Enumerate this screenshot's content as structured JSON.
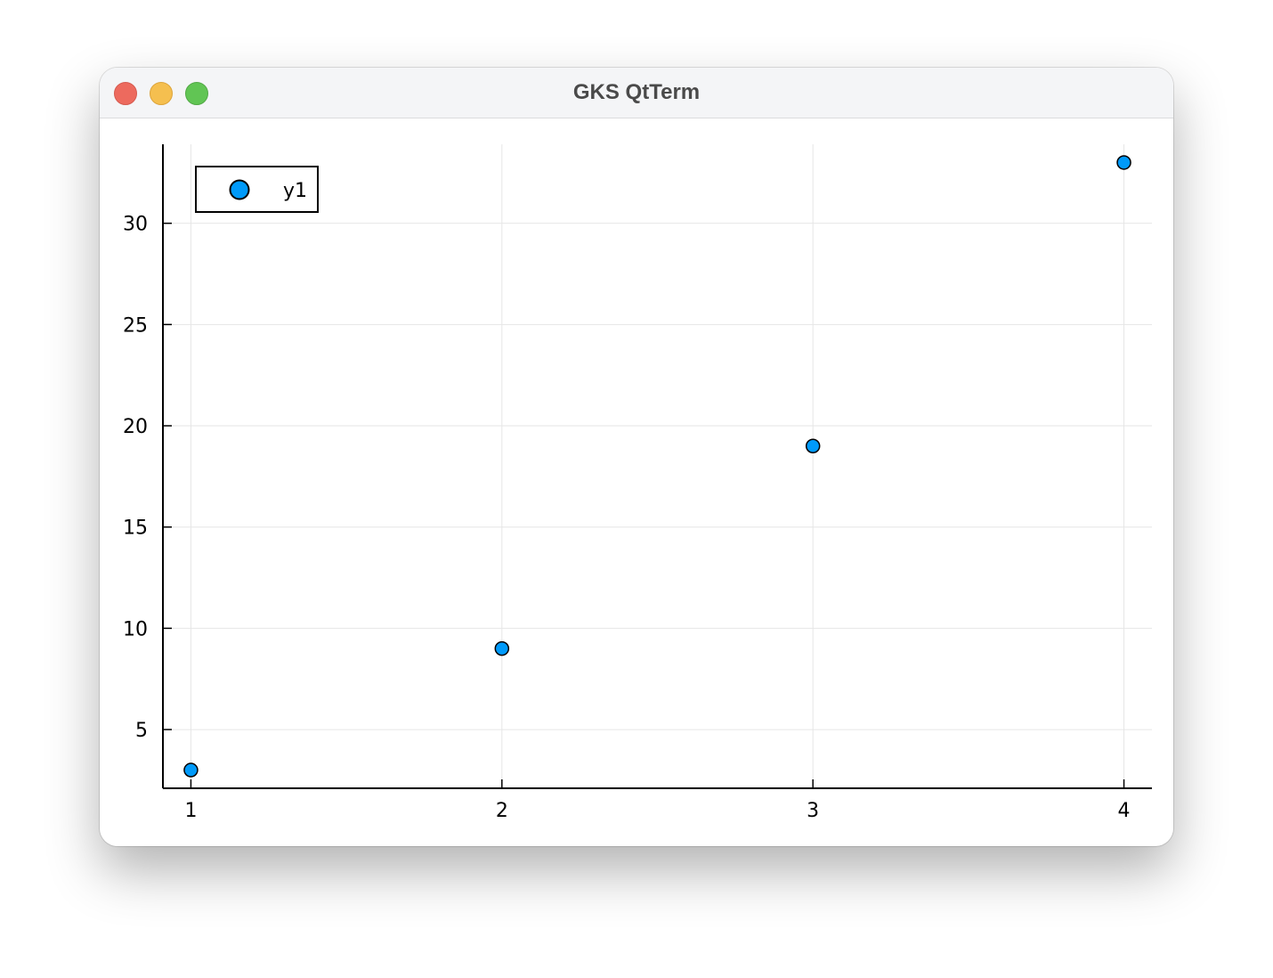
{
  "window": {
    "title": "GKS QtTerm",
    "buttons": [
      "close",
      "minimize",
      "zoom"
    ]
  },
  "colors": {
    "marker_fill": "#009AFA",
    "marker_stroke": "#000000",
    "grid": "#e6e6e6",
    "axis": "#000000"
  },
  "chart_data": {
    "type": "scatter",
    "series": [
      {
        "name": "y1",
        "x": [
          1,
          2,
          3,
          4
        ],
        "y": [
          3,
          9,
          19,
          33
        ]
      }
    ],
    "xlim": [
      0.91,
      4.09
    ],
    "ylim": [
      2.1,
      33.9
    ],
    "xticks": [
      1,
      2,
      3,
      4
    ],
    "yticks": [
      5,
      10,
      15,
      20,
      25,
      30
    ],
    "grid": true,
    "legend": "top-left"
  }
}
